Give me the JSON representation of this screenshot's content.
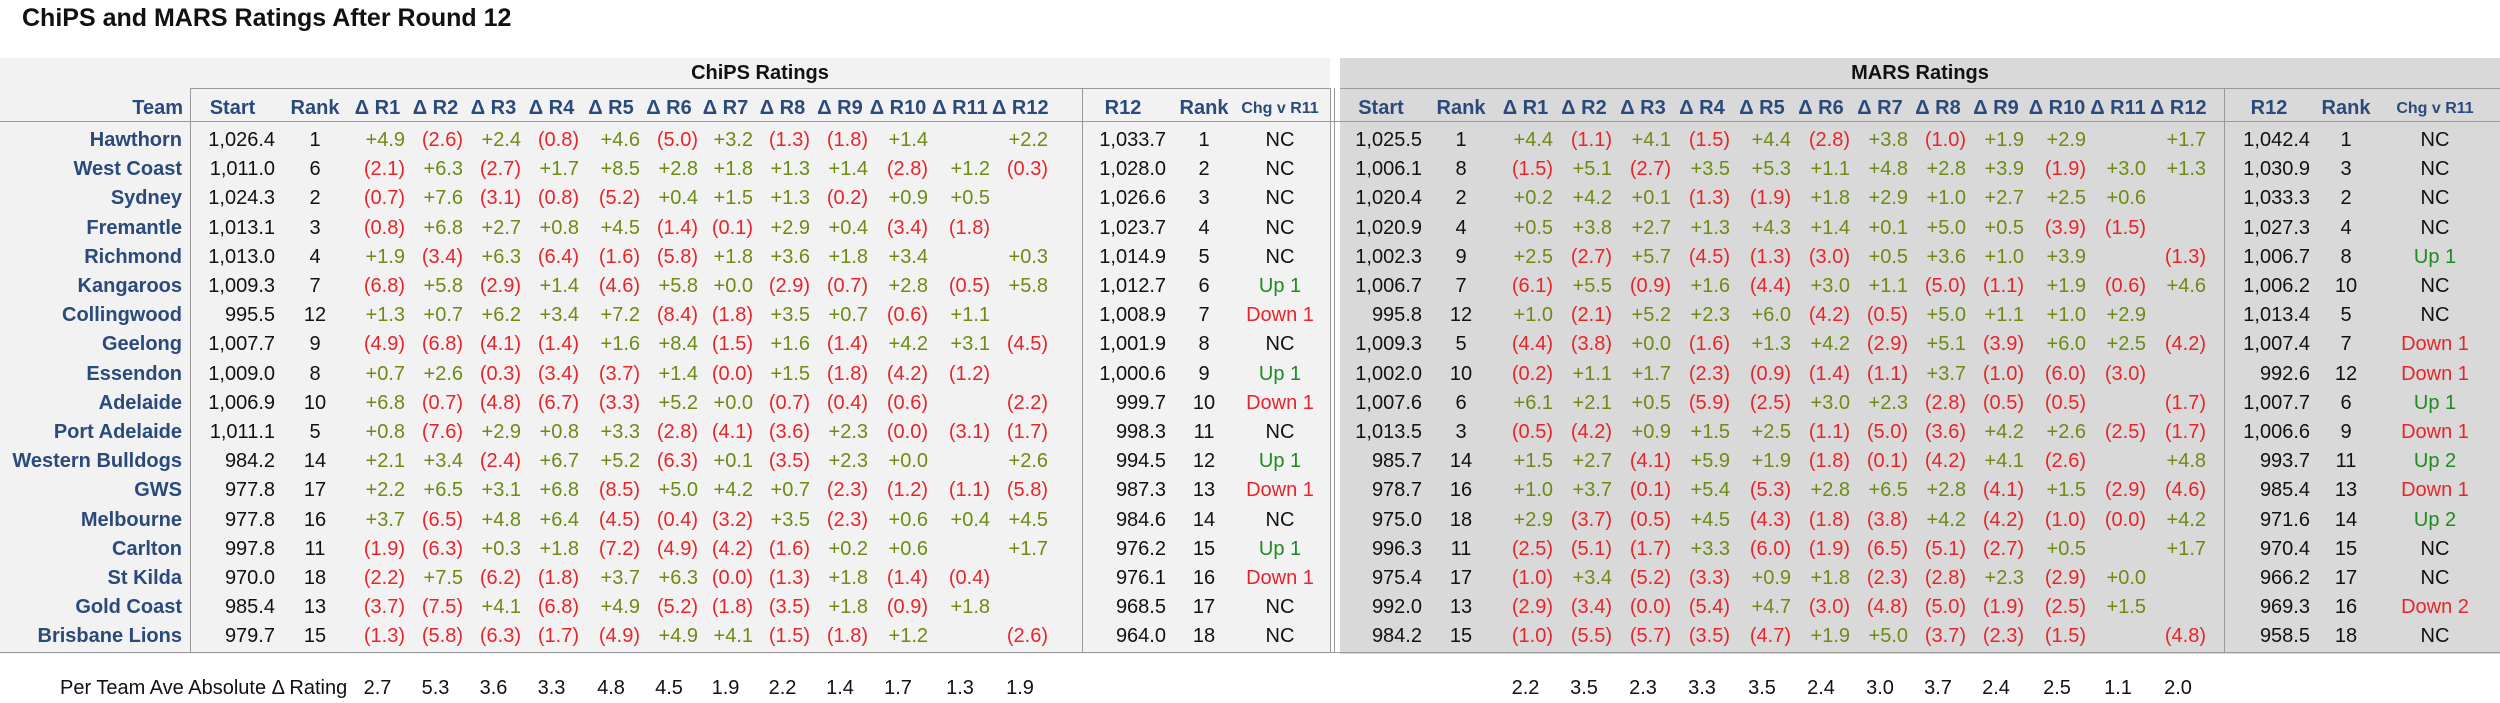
{
  "title": "ChiPS and MARS Ratings After Round 12",
  "sections": {
    "chips": "ChiPS Ratings",
    "mars": "MARS Ratings"
  },
  "headers": {
    "team": "Team",
    "chips": [
      "Start",
      "Rank",
      "Δ R1",
      "Δ R2",
      "Δ R3",
      "Δ R4",
      "Δ R5",
      "Δ R6",
      "Δ R7",
      "Δ R8",
      "Δ R9",
      "Δ R10",
      "Δ R11",
      "Δ R12",
      "R12",
      "Rank",
      "Chg v R11"
    ],
    "mars": [
      "Start",
      "Rank",
      "Δ R1",
      "Δ R2",
      "Δ R3",
      "Δ R4",
      "Δ R5",
      "Δ R6",
      "Δ R7",
      "Δ R8",
      "Δ R9",
      "Δ R10",
      "Δ R11",
      "Δ R12",
      "R12",
      "Rank",
      "Chg v R11"
    ]
  },
  "colors": {
    "team": "#2a4a7b",
    "positive": "#6d8a12",
    "negative": "#e8242a",
    "up": "#1f8a1f",
    "chips_bg": "#f2f2f2",
    "mars_bg": "#d9d9d9"
  },
  "chart_data": {
    "type": "table",
    "teams": [
      "Hawthorn",
      "West Coast",
      "Sydney",
      "Fremantle",
      "Richmond",
      "Kangaroos",
      "Collingwood",
      "Geelong",
      "Essendon",
      "Adelaide",
      "Port Adelaide",
      "Western Bulldogs",
      "GWS",
      "Melbourne",
      "Carlton",
      "St Kilda",
      "Gold Coast",
      "Brisbane Lions"
    ],
    "chips_rows": [
      [
        "1,026.4",
        "1",
        "+4.9",
        "(2.6)",
        "+2.4",
        "(0.8)",
        "+4.6",
        "(5.0)",
        "+3.2",
        "(1.3)",
        "(1.8)",
        "+1.4",
        "",
        "+2.2",
        "1,033.7",
        "1",
        "NC"
      ],
      [
        "1,011.0",
        "6",
        "(2.1)",
        "+6.3",
        "(2.7)",
        "+1.7",
        "+8.5",
        "+2.8",
        "+1.8",
        "+1.3",
        "+1.4",
        "(2.8)",
        "+1.2",
        "(0.3)",
        "1,028.0",
        "2",
        "NC"
      ],
      [
        "1,024.3",
        "2",
        "(0.7)",
        "+7.6",
        "(3.1)",
        "(0.8)",
        "(5.2)",
        "+0.4",
        "+1.5",
        "+1.3",
        "(0.2)",
        "+0.9",
        "+0.5",
        "",
        "1,026.6",
        "3",
        "NC"
      ],
      [
        "1,013.1",
        "3",
        "(0.8)",
        "+6.8",
        "+2.7",
        "+0.8",
        "+4.5",
        "(1.4)",
        "(0.1)",
        "+2.9",
        "+0.4",
        "(3.4)",
        "(1.8)",
        "",
        "1,023.7",
        "4",
        "NC"
      ],
      [
        "1,013.0",
        "4",
        "+1.9",
        "(3.4)",
        "+6.3",
        "(6.4)",
        "(1.6)",
        "(5.8)",
        "+1.8",
        "+3.6",
        "+1.8",
        "+3.4",
        "",
        "+0.3",
        "1,014.9",
        "5",
        "NC"
      ],
      [
        "1,009.3",
        "7",
        "(6.8)",
        "+5.8",
        "(2.9)",
        "+1.4",
        "(4.6)",
        "+5.8",
        "+0.0",
        "(2.9)",
        "(0.7)",
        "+2.8",
        "(0.5)",
        "+5.8",
        "1,012.7",
        "6",
        "Up 1"
      ],
      [
        "995.5",
        "12",
        "+1.3",
        "+0.7",
        "+6.2",
        "+3.4",
        "+7.2",
        "(8.4)",
        "(1.8)",
        "+3.5",
        "+0.7",
        "(0.6)",
        "+1.1",
        "",
        "1,008.9",
        "7",
        "Down 1"
      ],
      [
        "1,007.7",
        "9",
        "(4.9)",
        "(6.8)",
        "(4.1)",
        "(1.4)",
        "+1.6",
        "+8.4",
        "(1.5)",
        "+1.6",
        "(1.4)",
        "+4.2",
        "+3.1",
        "(4.5)",
        "1,001.9",
        "8",
        "NC"
      ],
      [
        "1,009.0",
        "8",
        "+0.7",
        "+2.6",
        "(0.3)",
        "(3.4)",
        "(3.7)",
        "+1.4",
        "(0.0)",
        "+1.5",
        "(1.8)",
        "(4.2)",
        "(1.2)",
        "",
        "1,000.6",
        "9",
        "Up 1"
      ],
      [
        "1,006.9",
        "10",
        "+6.8",
        "(0.7)",
        "(4.8)",
        "(6.7)",
        "(3.3)",
        "+5.2",
        "+0.0",
        "(0.7)",
        "(0.4)",
        "(0.6)",
        "",
        "(2.2)",
        "999.7",
        "10",
        "Down 1"
      ],
      [
        "1,011.1",
        "5",
        "+0.8",
        "(7.6)",
        "+2.9",
        "+0.8",
        "+3.3",
        "(2.8)",
        "(4.1)",
        "(3.6)",
        "+2.3",
        "(0.0)",
        "(3.1)",
        "(1.7)",
        "998.3",
        "11",
        "NC"
      ],
      [
        "984.2",
        "14",
        "+2.1",
        "+3.4",
        "(2.4)",
        "+6.7",
        "+5.2",
        "(6.3)",
        "+0.1",
        "(3.5)",
        "+2.3",
        "+0.0",
        "",
        "+2.6",
        "994.5",
        "12",
        "Up 1"
      ],
      [
        "977.8",
        "17",
        "+2.2",
        "+6.5",
        "+3.1",
        "+6.8",
        "(8.5)",
        "+5.0",
        "+4.2",
        "+0.7",
        "(2.3)",
        "(1.2)",
        "(1.1)",
        "(5.8)",
        "987.3",
        "13",
        "Down 1"
      ],
      [
        "977.8",
        "16",
        "+3.7",
        "(6.5)",
        "+4.8",
        "+6.4",
        "(4.5)",
        "(0.4)",
        "(3.2)",
        "+3.5",
        "(2.3)",
        "+0.6",
        "+0.4",
        "+4.5",
        "984.6",
        "14",
        "NC"
      ],
      [
        "997.8",
        "11",
        "(1.9)",
        "(6.3)",
        "+0.3",
        "+1.8",
        "(7.2)",
        "(4.9)",
        "(4.2)",
        "(1.6)",
        "+0.2",
        "+0.6",
        "",
        "+1.7",
        "976.2",
        "15",
        "Up 1"
      ],
      [
        "970.0",
        "18",
        "(2.2)",
        "+7.5",
        "(6.2)",
        "(1.8)",
        "+3.7",
        "+6.3",
        "(0.0)",
        "(1.3)",
        "+1.8",
        "(1.4)",
        "(0.4)",
        "",
        "976.1",
        "16",
        "Down 1"
      ],
      [
        "985.4",
        "13",
        "(3.7)",
        "(7.5)",
        "+4.1",
        "(6.8)",
        "+4.9",
        "(5.2)",
        "(1.8)",
        "(3.5)",
        "+1.8",
        "(0.9)",
        "+1.8",
        "",
        "968.5",
        "17",
        "NC"
      ],
      [
        "979.7",
        "15",
        "(1.3)",
        "(5.8)",
        "(6.3)",
        "(1.7)",
        "(4.9)",
        "+4.9",
        "+4.1",
        "(1.5)",
        "(1.8)",
        "+1.2",
        "",
        "(2.6)",
        "964.0",
        "18",
        "NC"
      ]
    ],
    "mars_rows": [
      [
        "1,025.5",
        "1",
        "+4.4",
        "(1.1)",
        "+4.1",
        "(1.5)",
        "+4.4",
        "(2.8)",
        "+3.8",
        "(1.0)",
        "+1.9",
        "+2.9",
        "",
        "+1.7",
        "1,042.4",
        "1",
        "NC"
      ],
      [
        "1,006.1",
        "8",
        "(1.5)",
        "+5.1",
        "(2.7)",
        "+3.5",
        "+5.3",
        "+1.1",
        "+4.8",
        "+2.8",
        "+3.9",
        "(1.9)",
        "+3.0",
        "+1.3",
        "1,030.9",
        "3",
        "NC"
      ],
      [
        "1,020.4",
        "2",
        "+0.2",
        "+4.2",
        "+0.1",
        "(1.3)",
        "(1.9)",
        "+1.8",
        "+2.9",
        "+1.0",
        "+2.7",
        "+2.5",
        "+0.6",
        "",
        "1,033.3",
        "2",
        "NC"
      ],
      [
        "1,020.9",
        "4",
        "+0.5",
        "+3.8",
        "+2.7",
        "+1.3",
        "+4.3",
        "+1.4",
        "+0.1",
        "+5.0",
        "+0.5",
        "(3.9)",
        "(1.5)",
        "",
        "1,027.3",
        "4",
        "NC"
      ],
      [
        "1,002.3",
        "9",
        "+2.5",
        "(2.7)",
        "+5.7",
        "(4.5)",
        "(1.3)",
        "(3.0)",
        "+0.5",
        "+3.6",
        "+1.0",
        "+3.9",
        "",
        "(1.3)",
        "1,006.7",
        "8",
        "Up 1"
      ],
      [
        "1,006.7",
        "7",
        "(6.1)",
        "+5.5",
        "(0.9)",
        "+1.6",
        "(4.4)",
        "+3.0",
        "+1.1",
        "(5.0)",
        "(1.1)",
        "+1.9",
        "(0.6)",
        "+4.6",
        "1,006.2",
        "10",
        "NC"
      ],
      [
        "995.8",
        "12",
        "+1.0",
        "(2.1)",
        "+5.2",
        "+2.3",
        "+6.0",
        "(4.2)",
        "(0.5)",
        "+5.0",
        "+1.1",
        "+1.0",
        "+2.9",
        "",
        "1,013.4",
        "5",
        "NC"
      ],
      [
        "1,009.3",
        "5",
        "(4.4)",
        "(3.8)",
        "+0.0",
        "(1.6)",
        "+1.3",
        "+4.2",
        "(2.9)",
        "+5.1",
        "(3.9)",
        "+6.0",
        "+2.5",
        "(4.2)",
        "1,007.4",
        "7",
        "Down 1"
      ],
      [
        "1,002.0",
        "10",
        "(0.2)",
        "+1.1",
        "+1.7",
        "(2.3)",
        "(0.9)",
        "(1.4)",
        "(1.1)",
        "+3.7",
        "(1.0)",
        "(6.0)",
        "(3.0)",
        "",
        "992.6",
        "12",
        "Down 1"
      ],
      [
        "1,007.6",
        "6",
        "+6.1",
        "+2.1",
        "+0.5",
        "(5.9)",
        "(2.5)",
        "+3.0",
        "+2.3",
        "(2.8)",
        "(0.5)",
        "(0.5)",
        "",
        "(1.7)",
        "1,007.7",
        "6",
        "Up 1"
      ],
      [
        "1,013.5",
        "3",
        "(0.5)",
        "(4.2)",
        "+0.9",
        "+1.5",
        "+2.5",
        "(1.1)",
        "(5.0)",
        "(3.6)",
        "+4.2",
        "+2.6",
        "(2.5)",
        "(1.7)",
        "1,006.6",
        "9",
        "Down 1"
      ],
      [
        "985.7",
        "14",
        "+1.5",
        "+2.7",
        "(4.1)",
        "+5.9",
        "+1.9",
        "(1.8)",
        "(0.1)",
        "(4.2)",
        "+4.1",
        "(2.6)",
        "",
        "+4.8",
        "993.7",
        "11",
        "Up 2"
      ],
      [
        "978.7",
        "16",
        "+1.0",
        "+3.7",
        "(0.1)",
        "+5.4",
        "(5.3)",
        "+2.8",
        "+6.5",
        "+2.8",
        "(4.1)",
        "+1.5",
        "(2.9)",
        "(4.6)",
        "985.4",
        "13",
        "Down 1"
      ],
      [
        "975.0",
        "18",
        "+2.9",
        "(3.7)",
        "(0.5)",
        "+4.5",
        "(4.3)",
        "(1.8)",
        "(3.8)",
        "+4.2",
        "(4.2)",
        "(1.0)",
        "(0.0)",
        "+4.2",
        "971.6",
        "14",
        "Up 2"
      ],
      [
        "996.3",
        "11",
        "(2.5)",
        "(5.1)",
        "(1.7)",
        "+3.3",
        "(6.0)",
        "(1.9)",
        "(6.5)",
        "(5.1)",
        "(2.7)",
        "+0.5",
        "",
        "+1.7",
        "970.4",
        "15",
        "NC"
      ],
      [
        "975.4",
        "17",
        "(1.0)",
        "+3.4",
        "(5.2)",
        "(3.3)",
        "+0.9",
        "+1.8",
        "(2.3)",
        "(2.8)",
        "+2.3",
        "(2.9)",
        "+0.0",
        "",
        "966.2",
        "17",
        "NC"
      ],
      [
        "992.0",
        "13",
        "(2.9)",
        "(3.4)",
        "(0.0)",
        "(5.4)",
        "+4.7",
        "(3.0)",
        "(4.8)",
        "(5.0)",
        "(1.9)",
        "(2.5)",
        "+1.5",
        "",
        "969.3",
        "16",
        "Down 2"
      ],
      [
        "984.2",
        "15",
        "(1.0)",
        "(5.5)",
        "(5.7)",
        "(3.5)",
        "(4.7)",
        "+1.9",
        "+5.0",
        "(3.7)",
        "(2.3)",
        "(1.5)",
        "",
        "(4.8)",
        "958.5",
        "18",
        "NC"
      ]
    ],
    "footer": {
      "label": "Per Team Ave Absolute Δ Rating",
      "chips": [
        "2.7",
        "5.3",
        "3.6",
        "3.3",
        "4.8",
        "4.5",
        "1.9",
        "2.2",
        "1.4",
        "1.7",
        "1.3",
        "1.9"
      ],
      "mars": [
        "2.2",
        "3.5",
        "2.3",
        "3.3",
        "3.5",
        "2.4",
        "3.0",
        "3.7",
        "2.4",
        "2.5",
        "1.1",
        "2.0"
      ]
    }
  }
}
